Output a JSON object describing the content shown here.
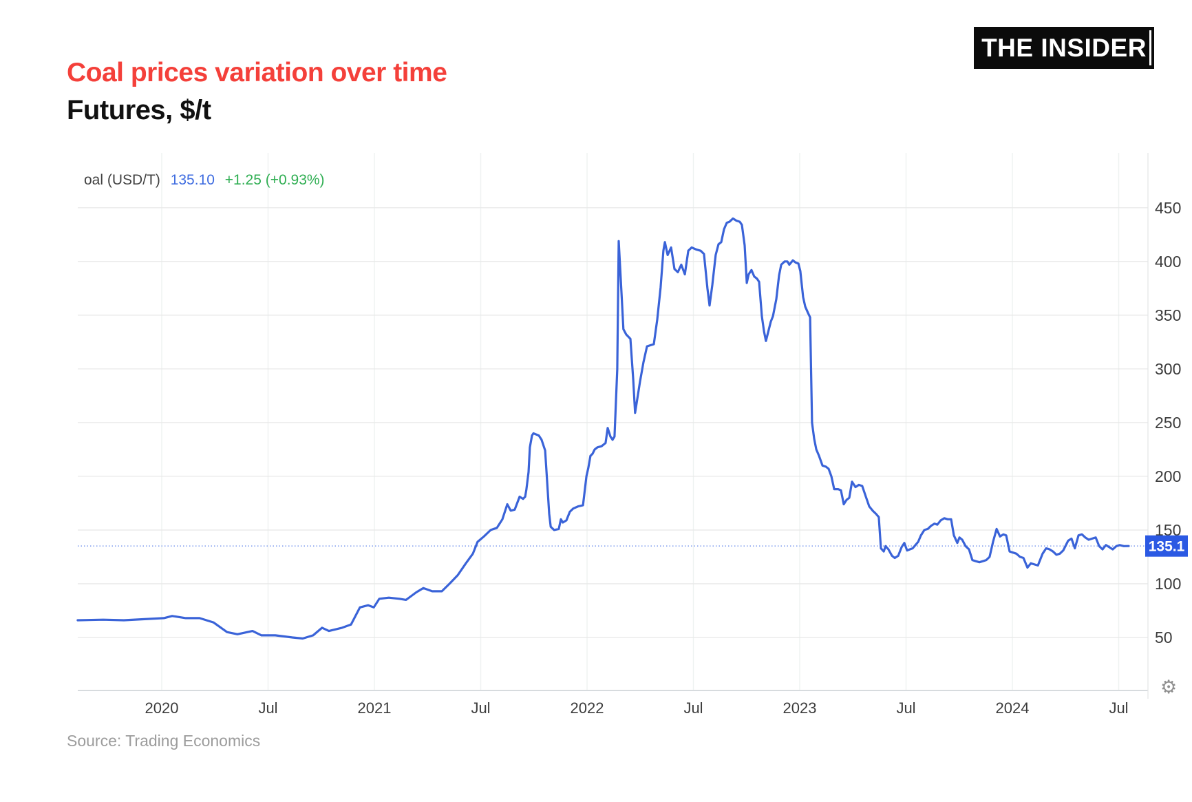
{
  "page": {
    "title": "Coal prices variation over time",
    "subtitle": "Futures, $/t",
    "logo": "THE INSIDER",
    "source": "Source: Trading Economics"
  },
  "legend": {
    "series_label": "oal (USD/T)",
    "last_price": "135.10",
    "change": "+1.25 (+0.93%)"
  },
  "icons": {
    "settings_gear": "⚙"
  },
  "colors": {
    "title_red": "#f4403a",
    "subtitle_black": "#111111",
    "logo_bg": "#0b0b0b",
    "line_blue": "#3a63d8",
    "legend_label": "#424242",
    "legend_price_blue": "#3d6be0",
    "legend_change_green": "#2fae52",
    "badge_blue": "#2b59e3",
    "badge_text": "#ffffff",
    "dotted_line": "#7e9bed",
    "grid_horizontal": "#e8e8e8",
    "grid_vertical": "#eef2f1",
    "axis_line": "#d7dbde",
    "plot_border": "#e4e6e8",
    "tick_text": "#3c3c3c",
    "source_gray": "#9c9c9c"
  },
  "chart_data": {
    "type": "line",
    "title": "Coal prices variation over time",
    "ylabel": "Futures, $/t",
    "grid": true,
    "legend_position": "top-left",
    "current_price": 135.1,
    "current_price_label": "135.1",
    "x_axis": {
      "ticks": [
        "2020",
        "Jul",
        "2021",
        "Jul",
        "2022",
        "Jul",
        "2023",
        "Jul",
        "2024",
        "Jul"
      ],
      "tick_years": [
        2020,
        2020.5,
        2021,
        2021.5,
        2022,
        2022.5,
        2023,
        2023.5,
        2024,
        2024.5
      ],
      "range": [
        2019.6,
        2024.64
      ]
    },
    "y_axis": {
      "ticks": [
        50,
        100,
        150,
        200,
        250,
        300,
        350,
        400,
        450
      ],
      "range": [
        0,
        512
      ]
    },
    "series": [
      {
        "name": "Coal (USD/T)",
        "points": [
          [
            2019.605,
            66
          ],
          [
            2019.725,
            66.5
          ],
          [
            2019.822,
            66
          ],
          [
            2019.919,
            67
          ],
          [
            2020.01,
            68
          ],
          [
            2020.049,
            70
          ],
          [
            2020.113,
            68
          ],
          [
            2020.178,
            68
          ],
          [
            2020.243,
            64
          ],
          [
            2020.307,
            55
          ],
          [
            2020.356,
            53
          ],
          [
            2020.427,
            56
          ],
          [
            2020.469,
            52
          ],
          [
            2020.534,
            52
          ],
          [
            2020.615,
            50
          ],
          [
            2020.663,
            49
          ],
          [
            2020.712,
            52
          ],
          [
            2020.754,
            59
          ],
          [
            2020.786,
            56
          ],
          [
            2020.848,
            59
          ],
          [
            2020.89,
            62
          ],
          [
            2020.932,
            78
          ],
          [
            2020.971,
            80
          ],
          [
            2020.997,
            78
          ],
          [
            2021.023,
            86
          ],
          [
            2021.068,
            87
          ],
          [
            2021.117,
            86
          ],
          [
            2021.149,
            85
          ],
          [
            2021.197,
            92
          ],
          [
            2021.23,
            96
          ],
          [
            2021.272,
            93
          ],
          [
            2021.317,
            93
          ],
          [
            2021.353,
            100
          ],
          [
            2021.392,
            108
          ],
          [
            2021.43,
            119
          ],
          [
            2021.463,
            128
          ],
          [
            2021.485,
            139
          ],
          [
            2021.515,
            144
          ],
          [
            2021.547,
            150
          ],
          [
            2021.576,
            152
          ],
          [
            2021.602,
            160
          ],
          [
            2021.625,
            174
          ],
          [
            2021.641,
            168
          ],
          [
            2021.66,
            169
          ],
          [
            2021.683,
            181
          ],
          [
            2021.699,
            179
          ],
          [
            2021.709,
            181
          ],
          [
            2021.715,
            188
          ],
          [
            2021.725,
            204
          ],
          [
            2021.731,
            227
          ],
          [
            2021.741,
            238
          ],
          [
            2021.748,
            240
          ],
          [
            2021.773,
            238
          ],
          [
            2021.786,
            234
          ],
          [
            2021.803,
            224
          ],
          [
            2021.822,
            165
          ],
          [
            2021.829,
            153
          ],
          [
            2021.845,
            150
          ],
          [
            2021.867,
            151
          ],
          [
            2021.877,
            160
          ],
          [
            2021.886,
            157
          ],
          [
            2021.903,
            159
          ],
          [
            2021.919,
            167
          ],
          [
            2021.935,
            170
          ],
          [
            2021.958,
            172
          ],
          [
            2021.981,
            173
          ],
          [
            2021.997,
            200
          ],
          [
            2022.006,
            208
          ],
          [
            2022.016,
            219
          ],
          [
            2022.026,
            221
          ],
          [
            2022.036,
            225
          ],
          [
            2022.049,
            227
          ],
          [
            2022.068,
            228
          ],
          [
            2022.087,
            231
          ],
          [
            2022.097,
            245
          ],
          [
            2022.11,
            237
          ],
          [
            2022.12,
            234
          ],
          [
            2022.129,
            237
          ],
          [
            2022.142,
            300
          ],
          [
            2022.149,
            419
          ],
          [
            2022.162,
            370
          ],
          [
            2022.171,
            337
          ],
          [
            2022.184,
            332
          ],
          [
            2022.194,
            330
          ],
          [
            2022.204,
            328
          ],
          [
            2022.217,
            290
          ],
          [
            2022.226,
            259
          ],
          [
            2022.249,
            288
          ],
          [
            2022.265,
            306
          ],
          [
            2022.282,
            321
          ],
          [
            2022.298,
            322
          ],
          [
            2022.314,
            323
          ],
          [
            2022.33,
            346
          ],
          [
            2022.346,
            376
          ],
          [
            2022.359,
            410
          ],
          [
            2022.366,
            418
          ],
          [
            2022.379,
            406
          ],
          [
            2022.395,
            413
          ],
          [
            2022.411,
            393
          ],
          [
            2022.427,
            390
          ],
          [
            2022.443,
            397
          ],
          [
            2022.46,
            388
          ],
          [
            2022.476,
            410
          ],
          [
            2022.492,
            413
          ],
          [
            2022.515,
            411
          ],
          [
            2022.534,
            410
          ],
          [
            2022.55,
            407
          ],
          [
            2022.566,
            375
          ],
          [
            2022.576,
            359
          ],
          [
            2022.589,
            378
          ],
          [
            2022.605,
            406
          ],
          [
            2022.618,
            416
          ],
          [
            2022.631,
            418
          ],
          [
            2022.644,
            430
          ],
          [
            2022.657,
            436
          ],
          [
            2022.67,
            437
          ],
          [
            2022.686,
            440
          ],
          [
            2022.702,
            438
          ],
          [
            2022.718,
            437
          ],
          [
            2022.728,
            434
          ],
          [
            2022.741,
            415
          ],
          [
            2022.751,
            380
          ],
          [
            2022.76,
            388
          ],
          [
            2022.773,
            392
          ],
          [
            2022.786,
            386
          ],
          [
            2022.799,
            384
          ],
          [
            2022.809,
            381
          ],
          [
            2022.822,
            349
          ],
          [
            2022.832,
            335
          ],
          [
            2022.841,
            326
          ],
          [
            2022.864,
            344
          ],
          [
            2022.874,
            349
          ],
          [
            2022.89,
            365
          ],
          [
            2022.903,
            387
          ],
          [
            2022.913,
            397
          ],
          [
            2022.929,
            400
          ],
          [
            2022.942,
            400
          ],
          [
            2022.951,
            397
          ],
          [
            2022.968,
            401
          ],
          [
            2022.981,
            399
          ],
          [
            2022.994,
            398
          ],
          [
            2023.003,
            391
          ],
          [
            2023.016,
            367
          ],
          [
            2023.026,
            358
          ],
          [
            2023.039,
            352
          ],
          [
            2023.049,
            348
          ],
          [
            2023.058,
            250
          ],
          [
            2023.068,
            235
          ],
          [
            2023.078,
            225
          ],
          [
            2023.091,
            219
          ],
          [
            2023.107,
            210
          ],
          [
            2023.123,
            209
          ],
          [
            2023.136,
            207
          ],
          [
            2023.149,
            200
          ],
          [
            2023.162,
            188
          ],
          [
            2023.181,
            188
          ],
          [
            2023.194,
            187
          ],
          [
            2023.207,
            174
          ],
          [
            2023.22,
            178
          ],
          [
            2023.233,
            180
          ],
          [
            2023.246,
            195
          ],
          [
            2023.262,
            190
          ],
          [
            2023.278,
            192
          ],
          [
            2023.294,
            191
          ],
          [
            2023.311,
            181
          ],
          [
            2023.327,
            172
          ],
          [
            2023.343,
            168
          ],
          [
            2023.359,
            165
          ],
          [
            2023.372,
            162
          ],
          [
            2023.382,
            133
          ],
          [
            2023.395,
            130
          ],
          [
            2023.404,
            135
          ],
          [
            2023.417,
            132
          ],
          [
            2023.434,
            126
          ],
          [
            2023.447,
            124
          ],
          [
            2023.463,
            126
          ],
          [
            2023.479,
            134
          ],
          [
            2023.492,
            138
          ],
          [
            2023.505,
            131
          ],
          [
            2023.518,
            132
          ],
          [
            2023.531,
            133
          ],
          [
            2023.544,
            136
          ],
          [
            2023.557,
            139
          ],
          [
            2023.57,
            145
          ],
          [
            2023.586,
            150
          ],
          [
            2023.602,
            151
          ],
          [
            2023.618,
            154
          ],
          [
            2023.634,
            156
          ],
          [
            2023.647,
            155
          ],
          [
            2023.663,
            159
          ],
          [
            2023.68,
            161
          ],
          [
            2023.696,
            160
          ],
          [
            2023.712,
            160
          ],
          [
            2023.725,
            145
          ],
          [
            2023.741,
            138
          ],
          [
            2023.751,
            143
          ],
          [
            2023.764,
            141
          ],
          [
            2023.78,
            135
          ],
          [
            2023.796,
            132
          ],
          [
            2023.812,
            122
          ],
          [
            2023.828,
            121
          ],
          [
            2023.845,
            120
          ],
          [
            2023.861,
            121
          ],
          [
            2023.877,
            122
          ],
          [
            2023.893,
            125
          ],
          [
            2023.909,
            139
          ],
          [
            2023.926,
            151
          ],
          [
            2023.942,
            144
          ],
          [
            2023.958,
            146
          ],
          [
            2023.971,
            145
          ],
          [
            2023.987,
            130
          ],
          [
            2024.003,
            129
          ],
          [
            2024.019,
            128
          ],
          [
            2024.036,
            125
          ],
          [
            2024.052,
            124
          ],
          [
            2024.071,
            115
          ],
          [
            2024.087,
            119
          ],
          [
            2024.104,
            118
          ],
          [
            2024.12,
            117
          ],
          [
            2024.142,
            128
          ],
          [
            2024.159,
            133
          ],
          [
            2024.175,
            132
          ],
          [
            2024.191,
            130
          ],
          [
            2024.207,
            127
          ],
          [
            2024.223,
            128
          ],
          [
            2024.239,
            131
          ],
          [
            2024.262,
            140
          ],
          [
            2024.278,
            142
          ],
          [
            2024.294,
            133
          ],
          [
            2024.311,
            145
          ],
          [
            2024.327,
            146
          ],
          [
            2024.343,
            143
          ],
          [
            2024.359,
            141
          ],
          [
            2024.375,
            142
          ],
          [
            2024.392,
            143
          ],
          [
            2024.408,
            135
          ],
          [
            2024.424,
            132
          ],
          [
            2024.44,
            136
          ],
          [
            2024.456,
            134
          ],
          [
            2024.472,
            132
          ],
          [
            2024.489,
            135
          ],
          [
            2024.505,
            136
          ],
          [
            2024.524,
            135
          ],
          [
            2024.547,
            135.1
          ]
        ]
      }
    ]
  }
}
